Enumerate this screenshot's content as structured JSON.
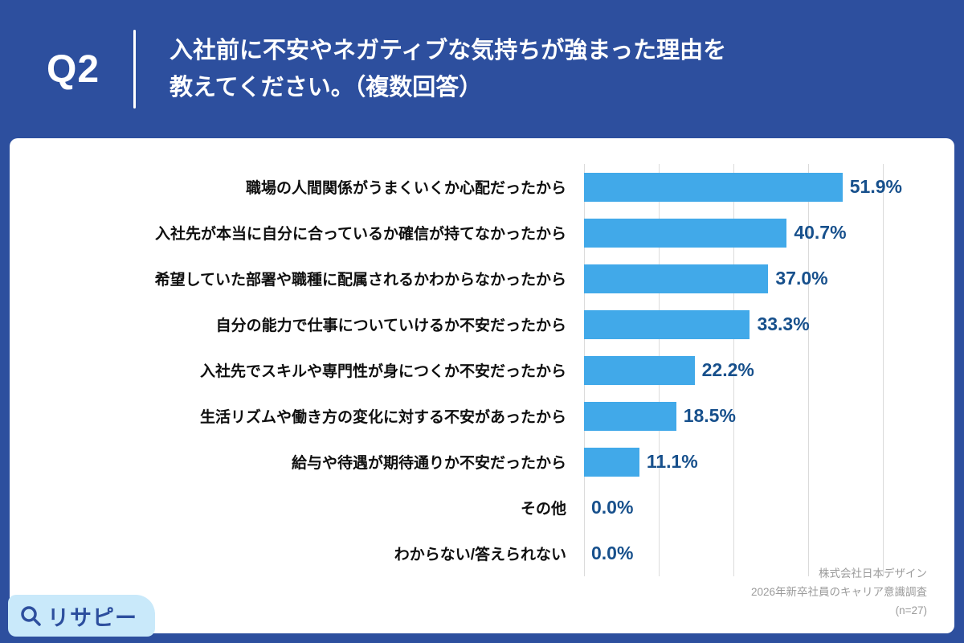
{
  "header": {
    "question_label": "Q2",
    "title_line1": "入社前に不安やネガティブな気持ちが強まった理由を",
    "title_line2": "教えてください。（複数回答）"
  },
  "chart_data": {
    "type": "bar",
    "orientation": "horizontal",
    "title": "入社前に不安やネガティブな気持ちが強まった理由（複数回答）",
    "categories": [
      "職場の人間関係がうまくいくか心配だったから",
      "入社先が本当に自分に合っているか確信が持てなかったから",
      "希望していた部署や職種に配属されるかわからなかったから",
      "自分の能力で仕事についていけるか不安だったから",
      "入社先でスキルや専門性が身につくか不安だったから",
      "生活リズムや働き方の変化に対する不安があったから",
      "給与や待遇が期待通りか不安だったから",
      "その他",
      "わからない/答えられない"
    ],
    "values": [
      51.9,
      40.7,
      37.0,
      33.3,
      22.2,
      18.5,
      11.1,
      0.0,
      0.0
    ],
    "value_suffix": "%",
    "xlim": [
      0,
      60
    ],
    "gridline_interval": 15,
    "grid": true,
    "legend": false,
    "bar_color": "#41A9E9",
    "value_label_color": "#17508C"
  },
  "source": {
    "line1": "株式会社日本デザイン",
    "line2": "2026年新卒社員のキャリア意識調査",
    "line3": "(n=27)"
  },
  "logo": {
    "text": "リサピー",
    "icon": "magnifier-icon"
  },
  "colors": {
    "background_navy": "#2D4F9E",
    "card_white": "#FFFFFF",
    "bar_blue": "#41A9E9",
    "value_text": "#17508C",
    "logo_background": "#C9E9FA",
    "source_text": "#9B9B9B"
  }
}
